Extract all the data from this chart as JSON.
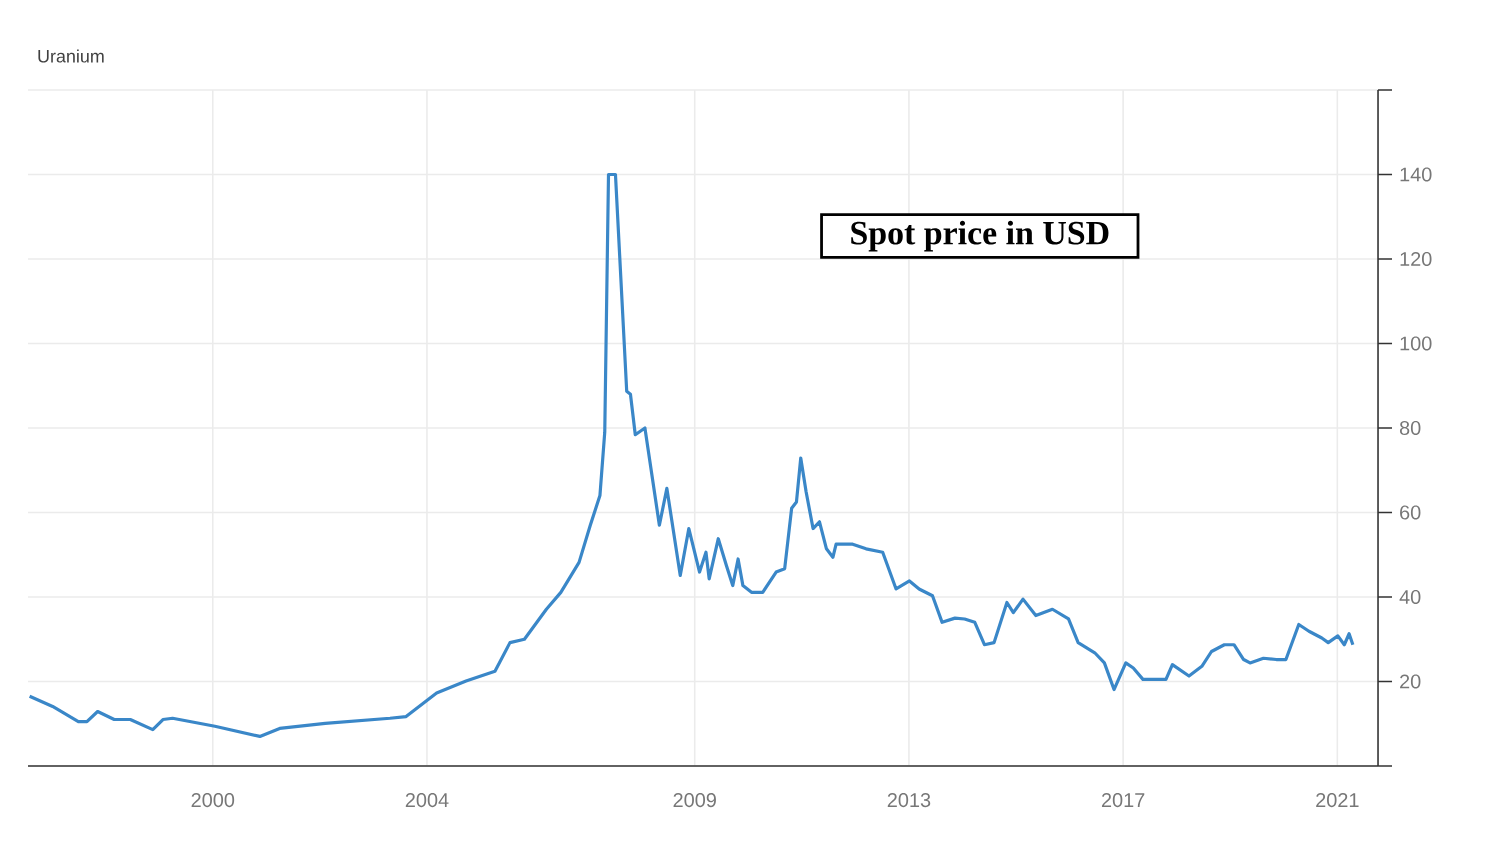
{
  "chart_data": {
    "type": "line",
    "title": "Uranium",
    "annotations": [
      "Spot price in USD"
    ],
    "x": [
      1996.58,
      1997.01,
      1997.49,
      1997.65,
      1997.85,
      1998.16,
      1998.46,
      1998.88,
      1999.07,
      1999.25,
      2000.04,
      2000.88,
      2001.25,
      2002.1,
      2003.31,
      2003.61,
      2004.18,
      2004.73,
      2005.27,
      2005.55,
      2005.82,
      2006.23,
      2006.5,
      2006.84,
      2007.05,
      2007.23,
      2007.32,
      2007.39,
      2007.52,
      2007.73,
      2007.8,
      2007.89,
      2008.07,
      2008.34,
      2008.48,
      2008.73,
      2008.89,
      2009.09,
      2009.21,
      2009.27,
      2009.44,
      2009.59,
      2009.71,
      2009.81,
      2009.9,
      2010.06,
      2010.27,
      2010.52,
      2010.68,
      2010.81,
      2010.9,
      2010.98,
      2011.08,
      2011.21,
      2011.33,
      2011.46,
      2011.58,
      2011.64,
      2011.95,
      2012.2,
      2012.51,
      2012.76,
      2013.01,
      2013.19,
      2013.44,
      2013.62,
      2013.86,
      2014.04,
      2014.23,
      2014.41,
      2014.59,
      2014.83,
      2014.95,
      2015.13,
      2015.37,
      2015.68,
      2015.98,
      2016.16,
      2016.47,
      2016.65,
      2016.83,
      2017.05,
      2017.19,
      2017.37,
      2017.8,
      2017.92,
      2018.23,
      2018.47,
      2018.65,
      2018.89,
      2019.07,
      2019.25,
      2019.37,
      2019.62,
      2019.86,
      2020.04,
      2020.28,
      2020.47,
      2020.71,
      2020.83,
      2021.01,
      2021.13,
      2021.22,
      2021.29
    ],
    "series": [
      {
        "color": "#3a87c8",
        "values": [
          16.5,
          14.1,
          10.5,
          10.5,
          12.9,
          11.0,
          11.0,
          8.6,
          11.0,
          11.3,
          9.4,
          7.0,
          8.9,
          10.1,
          11.3,
          11.7,
          17.3,
          20.1,
          22.4,
          29.2,
          30,
          37.1,
          41.1,
          48.2,
          57,
          64,
          79,
          140,
          140,
          88.7,
          88,
          78.4,
          80,
          57,
          65.7,
          45.1,
          56.2,
          45.9,
          50.6,
          44.3,
          53.8,
          47.5,
          42.7,
          49,
          42.7,
          41.1,
          41.1,
          45.9,
          46.7,
          61,
          62.5,
          72.9,
          64.9,
          56.2,
          57.8,
          51.4,
          49.4,
          52.5,
          52.5,
          51.4,
          50.6,
          41.9,
          43.8,
          41.9,
          40.3,
          34,
          35,
          34.8,
          34,
          28.7,
          29.2,
          38.7,
          36.3,
          39.5,
          35.6,
          37.1,
          34.8,
          29.2,
          26.8,
          24.4,
          18.1,
          24.4,
          23.2,
          20.5,
          20.5,
          24,
          21.3,
          23.6,
          27.1,
          28.7,
          28.7,
          25.2,
          24.4,
          25.5,
          25.2,
          25.2,
          33.5,
          31.9,
          30.3,
          29.2,
          30.8,
          28.7,
          31.3,
          28.7
        ]
      }
    ],
    "xlim": [
      1996.55,
      2021.76
    ],
    "xticks": [
      2000,
      2004,
      2009,
      2013,
      2017,
      2021
    ],
    "ylim": [
      0,
      160
    ],
    "yticks": [
      {
        "value": 0,
        "label": null
      },
      20,
      40,
      60,
      80,
      100,
      120,
      140,
      {
        "value": 160,
        "label": null
      }
    ],
    "grid": true,
    "line_style": "solid"
  }
}
